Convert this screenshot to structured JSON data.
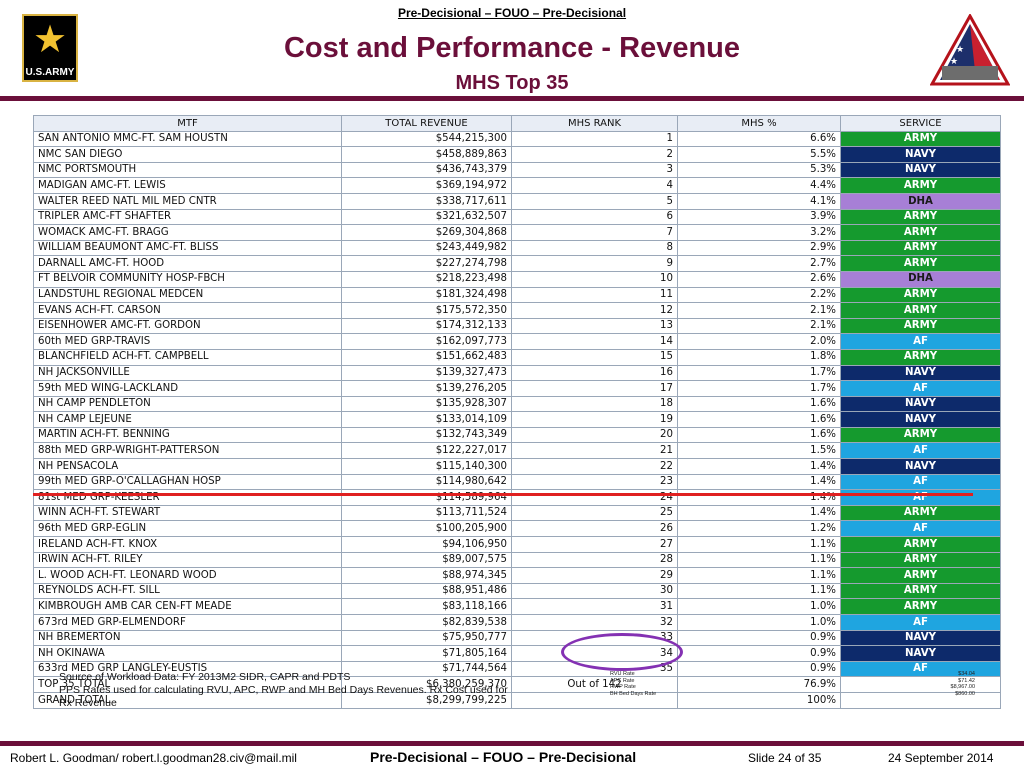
{
  "header": {
    "classification": "Pre-Decisional – FOUO – Pre-Decisional",
    "title": "Cost and Performance - Revenue",
    "subtitle": "MHS Top 35",
    "logo_text": "U.S.ARMY"
  },
  "table": {
    "headers": [
      "MTF",
      "TOTAL REVENUE",
      "MHS RANK",
      "MHS %",
      "SERVICE"
    ],
    "rows": [
      {
        "mtf": "SAN ANTONIO MMC-FT. SAM HOUSTN",
        "revenue": "$544,215,300",
        "rank": "1",
        "pct": "6.6%",
        "service": "ARMY"
      },
      {
        "mtf": "NMC SAN DIEGO",
        "revenue": "$458,889,863",
        "rank": "2",
        "pct": "5.5%",
        "service": "NAVY"
      },
      {
        "mtf": "NMC PORTSMOUTH",
        "revenue": "$436,743,379",
        "rank": "3",
        "pct": "5.3%",
        "service": "NAVY"
      },
      {
        "mtf": "MADIGAN AMC-FT. LEWIS",
        "revenue": "$369,194,972",
        "rank": "4",
        "pct": "4.4%",
        "service": "ARMY"
      },
      {
        "mtf": "WALTER REED NATL MIL MED CNTR",
        "revenue": "$338,717,611",
        "rank": "5",
        "pct": "4.1%",
        "service": "DHA"
      },
      {
        "mtf": "TRIPLER AMC-FT SHAFTER",
        "revenue": "$321,632,507",
        "rank": "6",
        "pct": "3.9%",
        "service": "ARMY"
      },
      {
        "mtf": "WOMACK AMC-FT. BRAGG",
        "revenue": "$269,304,868",
        "rank": "7",
        "pct": "3.2%",
        "service": "ARMY"
      },
      {
        "mtf": "WILLIAM BEAUMONT AMC-FT. BLISS",
        "revenue": "$243,449,982",
        "rank": "8",
        "pct": "2.9%",
        "service": "ARMY"
      },
      {
        "mtf": "DARNALL AMC-FT. HOOD",
        "revenue": "$227,274,798",
        "rank": "9",
        "pct": "2.7%",
        "service": "ARMY"
      },
      {
        "mtf": "FT BELVOIR COMMUNITY HOSP-FBCH",
        "revenue": "$218,223,498",
        "rank": "10",
        "pct": "2.6%",
        "service": "DHA"
      },
      {
        "mtf": "LANDSTUHL REGIONAL MEDCEN",
        "revenue": "$181,324,498",
        "rank": "11",
        "pct": "2.2%",
        "service": "ARMY"
      },
      {
        "mtf": "EVANS ACH-FT. CARSON",
        "revenue": "$175,572,350",
        "rank": "12",
        "pct": "2.1%",
        "service": "ARMY"
      },
      {
        "mtf": "EISENHOWER AMC-FT. GORDON",
        "revenue": "$174,312,133",
        "rank": "13",
        "pct": "2.1%",
        "service": "ARMY"
      },
      {
        "mtf": "60th MED GRP-TRAVIS",
        "revenue": "$162,097,773",
        "rank": "14",
        "pct": "2.0%",
        "service": "AF"
      },
      {
        "mtf": "BLANCHFIELD ACH-FT. CAMPBELL",
        "revenue": "$151,662,483",
        "rank": "15",
        "pct": "1.8%",
        "service": "ARMY"
      },
      {
        "mtf": "NH JACKSONVILLE",
        "revenue": "$139,327,473",
        "rank": "16",
        "pct": "1.7%",
        "service": "NAVY"
      },
      {
        "mtf": "59th MED WING-LACKLAND",
        "revenue": "$139,276,205",
        "rank": "17",
        "pct": "1.7%",
        "service": "AF"
      },
      {
        "mtf": "NH CAMP PENDLETON",
        "revenue": "$135,928,307",
        "rank": "18",
        "pct": "1.6%",
        "service": "NAVY"
      },
      {
        "mtf": "NH CAMP LEJEUNE",
        "revenue": "$133,014,109",
        "rank": "19",
        "pct": "1.6%",
        "service": "NAVY"
      },
      {
        "mtf": "MARTIN ACH-FT. BENNING",
        "revenue": "$132,743,349",
        "rank": "20",
        "pct": "1.6%",
        "service": "ARMY"
      },
      {
        "mtf": "88th MED GRP-WRIGHT-PATTERSON",
        "revenue": "$122,227,017",
        "rank": "21",
        "pct": "1.5%",
        "service": "AF"
      },
      {
        "mtf": "NH PENSACOLA",
        "revenue": "$115,140,300",
        "rank": "22",
        "pct": "1.4%",
        "service": "NAVY"
      },
      {
        "mtf": "99th MED GRP-O'CALLAGHAN HOSP",
        "revenue": "$114,980,642",
        "rank": "23",
        "pct": "1.4%",
        "service": "AF"
      },
      {
        "mtf": "81st MED GRP-KEESLER",
        "revenue": "$114,589,964",
        "rank": "24",
        "pct": "1.4%",
        "service": "AF"
      },
      {
        "mtf": "WINN ACH-FT. STEWART",
        "revenue": "$113,711,524",
        "rank": "25",
        "pct": "1.4%",
        "service": "ARMY"
      },
      {
        "mtf": "96th MED GRP-EGLIN",
        "revenue": "$100,205,900",
        "rank": "26",
        "pct": "1.2%",
        "service": "AF"
      },
      {
        "mtf": "IRELAND ACH-FT. KNOX",
        "revenue": "$94,106,950",
        "rank": "27",
        "pct": "1.1%",
        "service": "ARMY"
      },
      {
        "mtf": "IRWIN ACH-FT. RILEY",
        "revenue": "$89,007,575",
        "rank": "28",
        "pct": "1.1%",
        "service": "ARMY"
      },
      {
        "mtf": "L. WOOD ACH-FT. LEONARD WOOD",
        "revenue": "$88,974,345",
        "rank": "29",
        "pct": "1.1%",
        "service": "ARMY"
      },
      {
        "mtf": "REYNOLDS ACH-FT. SILL",
        "revenue": "$88,951,486",
        "rank": "30",
        "pct": "1.1%",
        "service": "ARMY"
      },
      {
        "mtf": "KIMBROUGH AMB CAR CEN-FT MEADE",
        "revenue": "$83,118,166",
        "rank": "31",
        "pct": "1.0%",
        "service": "ARMY"
      },
      {
        "mtf": "673rd MED GRP-ELMENDORF",
        "revenue": "$82,839,538",
        "rank": "32",
        "pct": "1.0%",
        "service": "AF"
      },
      {
        "mtf": "NH BREMERTON",
        "revenue": "$75,950,777",
        "rank": "33",
        "pct": "0.9%",
        "service": "NAVY"
      },
      {
        "mtf": "NH OKINAWA",
        "revenue": "$71,805,164",
        "rank": "34",
        "pct": "0.9%",
        "service": "NAVY"
      },
      {
        "mtf": "633rd MED GRP LANGLEY-EUSTIS",
        "revenue": "$71,744,564",
        "rank": "35",
        "pct": "0.9%",
        "service": "AF"
      }
    ],
    "totals": [
      {
        "mtf": "TOP 35 TOTAL",
        "revenue": "$6,380,259,370",
        "rank": "Out of 142",
        "pct": "76.9%",
        "service": ""
      },
      {
        "mtf": "GRAND TOTAL",
        "revenue": "$8,299,799,225",
        "rank": "",
        "pct": "100%",
        "service": ""
      }
    ]
  },
  "service_colors": {
    "ARMY": "#159a2e",
    "NAVY": "#0d2a6b",
    "AF": "#1fa5e0",
    "DHA": "#a77fd6"
  },
  "source_note": {
    "line1": "Source of Workload Data: FY 2013M2 SIDR, CAPR and PDTS",
    "line2": "PPS Rates used for calculating RVU, APC, RWP and MH Bed Days Revenues. Rx Cost used for Rx Revenue"
  },
  "rates": [
    {
      "label": "RVU Rate",
      "value": "$34.04"
    },
    {
      "label": "APC Rate",
      "value": "$71.42"
    },
    {
      "label": "RWP Rate",
      "value": "$8,967.00"
    },
    {
      "label": "BH Bed Days Rate",
      "value": "$860.00"
    }
  ],
  "footer": {
    "author": "Robert L. Goodman/ robert.l.goodman28.civ@mail.mil",
    "classification": "Pre-Decisional – FOUO – Pre-Decisional",
    "slide": "Slide 24 of 35",
    "date": "24 September 2014"
  }
}
